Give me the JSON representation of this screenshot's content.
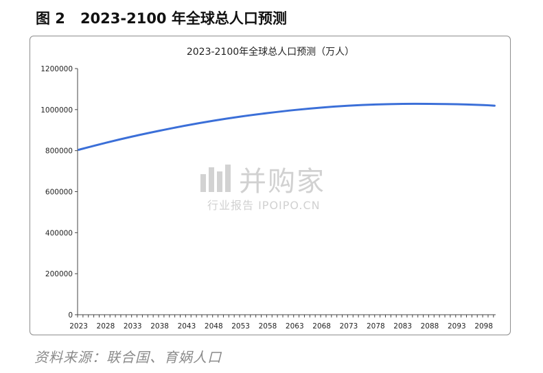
{
  "figure": {
    "number": "图 2",
    "title": "2023-2100 年全球总人口预测"
  },
  "chart_data": {
    "type": "line",
    "title": "2023-2100年全球总人口预测（万人）",
    "xlabel": "",
    "ylabel": "",
    "xlim": [
      2023,
      2100
    ],
    "ylim": [
      0,
      1200000
    ],
    "yticks": [
      0,
      200000,
      400000,
      600000,
      800000,
      1000000,
      1200000
    ],
    "xticks": [
      2023,
      2028,
      2033,
      2038,
      2043,
      2048,
      2053,
      2058,
      2063,
      2068,
      2073,
      2078,
      2083,
      2088,
      2093,
      2098
    ],
    "grid": false,
    "legend": "none",
    "series": [
      {
        "color": "#3b6fd8",
        "x": [
          2023,
          2028,
          2033,
          2038,
          2043,
          2048,
          2053,
          2058,
          2063,
          2068,
          2073,
          2078,
          2083,
          2088,
          2093,
          2098,
          2100
        ],
        "values": [
          804000,
          838000,
          869000,
          897000,
          923000,
          946000,
          966000,
          983000,
          998000,
          1010000,
          1019000,
          1025000,
          1028000,
          1028000,
          1026000,
          1022000,
          1019000
        ]
      }
    ]
  },
  "watermark": {
    "name": "并购家",
    "sub": "行业报告 IPOIPO.CN"
  },
  "source": "资料来源：联合国、育娲人口"
}
